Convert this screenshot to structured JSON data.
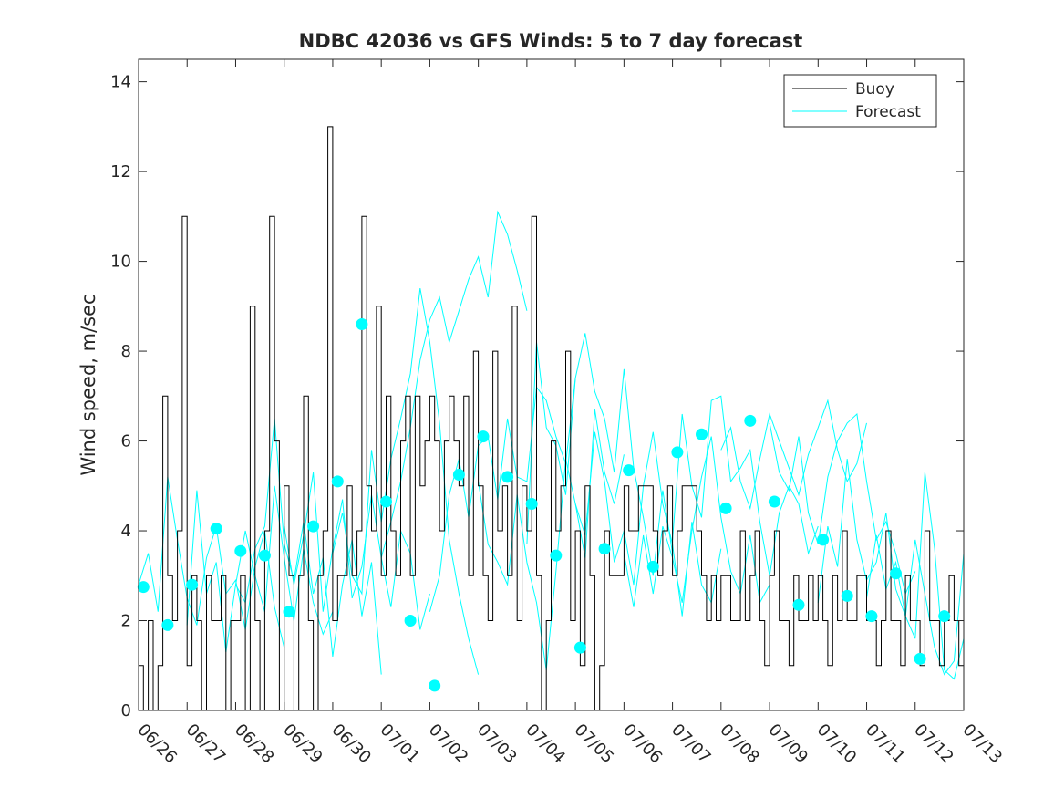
{
  "chart_data": {
    "type": "line",
    "title": "NDBC 42036 vs GFS Winds: 5 to 7 day forecast",
    "xlabel": "",
    "ylabel": "Wind speed, m/sec",
    "xlim": [
      "06/26",
      "07/13"
    ],
    "ylim": [
      0,
      14.5
    ],
    "x_ticks": [
      "06/26",
      "06/27",
      "06/28",
      "06/29",
      "06/30",
      "07/01",
      "07/02",
      "07/03",
      "07/04",
      "07/05",
      "07/06",
      "07/07",
      "07/08",
      "07/09",
      "07/10",
      "07/11",
      "07/12",
      "07/13"
    ],
    "y_ticks": [
      0,
      2,
      4,
      6,
      8,
      10,
      12,
      14
    ],
    "legend": {
      "position": "top-right",
      "entries": [
        "Buoy",
        "Forecast"
      ]
    },
    "colors": {
      "buoy": "#000000",
      "forecast": "#00ffff",
      "axis": "#262626"
    },
    "grid": false,
    "buoy_day_start": "06/26",
    "series": [
      {
        "name": "Buoy",
        "note": "hourly observations; t = days after 06/26 00:00",
        "t": [
          0.0,
          0.1,
          0.2,
          0.3,
          0.4,
          0.5,
          0.6,
          0.7,
          0.8,
          0.9,
          1.0,
          1.1,
          1.2,
          1.3,
          1.4,
          1.5,
          1.6,
          1.7,
          1.8,
          1.9,
          2.0,
          2.1,
          2.2,
          2.3,
          2.4,
          2.5,
          2.6,
          2.7,
          2.8,
          2.9,
          3.0,
          3.1,
          3.2,
          3.3,
          3.4,
          3.5,
          3.6,
          3.7,
          3.8,
          3.9,
          4.0,
          4.1,
          4.2,
          4.3,
          4.4,
          4.5,
          4.6,
          4.7,
          4.8,
          4.9,
          5.0,
          5.1,
          5.2,
          5.3,
          5.4,
          5.5,
          5.6,
          5.7,
          5.8,
          5.9,
          6.0,
          6.1,
          6.2,
          6.3,
          6.4,
          6.5,
          6.6,
          6.7,
          6.8,
          6.9,
          7.0,
          7.1,
          7.2,
          7.3,
          7.4,
          7.5,
          7.6,
          7.7,
          7.8,
          7.9,
          8.0,
          8.1,
          8.2,
          8.3,
          8.4,
          8.5,
          8.6,
          8.7,
          8.8,
          8.9,
          9.0,
          9.1,
          9.2,
          9.3,
          9.4,
          9.5,
          9.6,
          9.7,
          9.8,
          9.9,
          10.0,
          10.1,
          10.2,
          10.3,
          10.4,
          10.5,
          10.6,
          10.7,
          10.8,
          10.9,
          11.0,
          11.1,
          11.2,
          11.3,
          11.4,
          11.5,
          11.6,
          11.7,
          11.8,
          11.9,
          12.0,
          12.1,
          12.2,
          12.3,
          12.4,
          12.5,
          12.6,
          12.7,
          12.8,
          12.9,
          13.0,
          13.1,
          13.2,
          13.3,
          13.4,
          13.5,
          13.6,
          13.7,
          13.8,
          13.9,
          14.0,
          14.1,
          14.2,
          14.3,
          14.4,
          14.5,
          14.6,
          14.7,
          14.8,
          14.9,
          15.0,
          15.1,
          15.2,
          15.3,
          15.4,
          15.5,
          15.6,
          15.7,
          15.8,
          15.9,
          16.0,
          16.1,
          16.2,
          16.3,
          16.4,
          16.5,
          16.6,
          16.7,
          16.8,
          16.9,
          17.0
        ],
        "values": [
          1,
          0,
          2,
          0,
          1,
          7,
          3,
          2,
          4,
          11,
          1,
          3,
          2,
          0,
          3,
          2,
          2,
          3,
          0,
          2,
          2,
          3,
          0,
          9,
          2,
          0,
          4,
          11,
          6,
          0,
          5,
          3,
          0,
          3,
          7,
          2,
          0,
          3,
          4,
          13,
          2,
          3,
          3,
          5,
          3,
          4,
          11,
          5,
          4,
          9,
          3,
          7,
          4,
          3,
          6,
          7,
          3,
          7,
          5,
          6,
          7,
          6,
          4,
          6,
          7,
          6,
          5,
          7,
          3,
          8,
          5,
          3,
          2,
          8,
          4,
          5,
          3,
          9,
          2,
          5,
          4,
          11,
          3,
          0,
          2,
          6,
          4,
          5,
          8,
          2,
          4,
          1,
          5,
          3,
          0,
          1,
          4,
          3,
          3,
          3,
          5,
          4,
          4,
          5,
          5,
          5,
          4,
          3,
          4,
          5,
          3,
          4,
          5,
          5,
          5,
          4,
          3,
          2,
          3,
          2,
          3,
          3,
          2,
          2,
          4,
          2,
          3,
          4,
          2,
          1,
          3,
          4,
          2,
          2,
          1,
          3,
          2,
          2,
          3,
          2,
          3,
          2,
          1,
          3,
          2,
          4,
          2,
          2,
          3,
          3,
          2,
          2,
          1,
          2,
          4,
          2,
          2,
          1,
          3,
          2,
          2,
          1,
          4,
          2,
          2,
          1,
          2,
          3,
          2,
          1,
          2
        ]
      },
      {
        "name": "Forecast",
        "segments": [
          {
            "t": [
              0.0,
              0.2,
              0.4,
              0.6,
              0.8,
              1.0,
              1.2,
              1.4,
              1.6,
              1.8,
              2.0,
              2.2,
              2.4,
              2.6,
              2.8,
              3.0
            ],
            "values": [
              2.8,
              3.5,
              2.2,
              5.2,
              3.8,
              2.5,
              1.9,
              3.4,
              4.1,
              2.6,
              2.9,
              1.8,
              3.2,
              4.0,
              2.3,
              1.4
            ]
          },
          {
            "t": [
              1.0,
              1.2,
              1.4,
              1.6,
              1.8,
              2.0,
              2.2,
              2.4,
              2.6,
              2.8,
              3.0,
              3.2,
              3.4,
              3.6,
              3.8,
              4.0
            ],
            "values": [
              1.9,
              4.9,
              2.6,
              3.3,
              1.3,
              2.8,
              4.0,
              3.0,
              2.2,
              5.0,
              3.4,
              2.0,
              3.6,
              2.4,
              1.7,
              2.2
            ]
          },
          {
            "t": [
              2.0,
              2.2,
              2.4,
              2.6,
              2.8,
              3.0,
              3.2,
              3.4,
              3.6,
              3.8,
              4.0,
              4.2,
              4.4,
              4.6,
              4.8,
              5.0
            ],
            "values": [
              2.8,
              2.4,
              3.6,
              4.1,
              6.5,
              3.7,
              2.9,
              4.2,
              2.6,
              3.4,
              1.2,
              2.8,
              3.8,
              2.1,
              3.3,
              0.8
            ]
          },
          {
            "t": [
              3.0,
              3.2,
              3.4,
              3.6,
              3.8,
              4.0,
              4.2,
              4.4,
              4.6,
              4.8,
              5.0,
              5.2,
              5.4,
              5.6,
              5.8,
              6.0
            ],
            "values": [
              4.1,
              2.8,
              3.9,
              5.3,
              2.2,
              3.6,
              4.7,
              2.5,
              3.2,
              4.8,
              3.4,
              2.3,
              4.0,
              3.5,
              1.8,
              2.6
            ]
          },
          {
            "t": [
              4.0,
              4.2,
              4.4,
              4.6,
              4.8,
              5.0,
              5.2,
              5.4,
              5.6,
              5.8,
              6.0,
              6.2,
              6.4,
              6.6,
              6.8,
              7.0
            ],
            "values": [
              3.5,
              4.4,
              3.0,
              2.6,
              5.8,
              4.2,
              5.6,
              6.5,
              7.5,
              9.4,
              8.2,
              6.4,
              3.8,
              2.6,
              1.6,
              0.8
            ]
          },
          {
            "t": [
              5.0,
              5.2,
              5.4,
              5.6,
              5.8,
              6.0,
              6.2,
              6.4,
              6.6,
              6.8,
              7.0,
              7.2,
              7.4,
              7.6,
              7.8,
              8.0
            ],
            "values": [
              3.4,
              4.2,
              5.1,
              6.3,
              7.8,
              8.7,
              9.2,
              8.2,
              8.9,
              9.6,
              10.1,
              9.2,
              11.1,
              10.6,
              9.8,
              8.9
            ]
          },
          {
            "t": [
              6.0,
              6.2,
              6.4,
              6.6,
              6.8,
              7.0,
              7.2,
              7.4,
              7.6,
              7.8,
              8.0,
              8.2,
              8.4,
              8.6,
              8.8,
              9.0
            ],
            "values": [
              2.2,
              3.0,
              4.8,
              5.6,
              4.3,
              5.9,
              6.1,
              4.7,
              6.5,
              5.2,
              5.1,
              7.2,
              6.9,
              6.1,
              5.5,
              7.4
            ]
          },
          {
            "t": [
              7.0,
              7.2,
              7.4,
              7.6,
              7.8,
              8.0,
              8.2,
              8.4,
              8.6,
              8.8,
              9.0,
              9.2,
              9.4,
              9.6,
              9.8,
              10.0
            ],
            "values": [
              5.1,
              3.7,
              3.3,
              2.8,
              4.8,
              3.3,
              2.4,
              0.9,
              3.1,
              5.6,
              4.6,
              3.4,
              6.7,
              5.3,
              4.6,
              5.7
            ]
          },
          {
            "t": [
              8.0,
              8.2,
              8.4,
              8.6,
              8.8,
              9.0,
              9.2,
              9.4,
              9.6,
              9.8,
              10.0,
              10.2,
              10.4,
              10.6,
              10.8,
              11.0
            ],
            "values": [
              3.7,
              8.2,
              6.3,
              5.9,
              4.8,
              7.4,
              8.4,
              7.1,
              6.5,
              5.3,
              7.6,
              5.4,
              4.3,
              3.0,
              4.9,
              3.5
            ]
          },
          {
            "t": [
              9.0,
              9.2,
              9.4,
              9.6,
              9.8,
              10.0,
              10.2,
              10.4,
              10.6,
              10.8,
              11.0,
              11.2,
              11.4,
              11.6,
              11.8,
              12.0
            ],
            "values": [
              4.6,
              3.9,
              6.2,
              5.1,
              3.3,
              4.0,
              2.8,
              5.0,
              6.2,
              4.6,
              3.7,
              2.1,
              4.2,
              2.8,
              2.4,
              3.6
            ]
          },
          {
            "t": [
              10.0,
              10.2,
              10.4,
              10.6,
              10.8,
              11.0,
              11.2,
              11.4,
              11.6,
              11.8,
              12.0,
              12.2,
              12.4,
              12.6,
              12.8,
              13.0
            ],
            "values": [
              3.5,
              2.3,
              3.9,
              2.6,
              4.1,
              3.4,
              2.4,
              4.0,
              5.2,
              6.1,
              4.3,
              3.1,
              2.6,
              3.9,
              2.4,
              2.8
            ]
          },
          {
            "t": [
              11.0,
              11.2,
              11.4,
              11.6,
              11.8,
              12.0,
              12.2,
              12.4,
              12.6,
              12.8,
              13.0,
              13.2,
              13.4,
              13.6,
              13.8,
              14.0
            ],
            "values": [
              3.8,
              6.6,
              5.0,
              4.3,
              6.9,
              7.0,
              5.1,
              5.4,
              5.8,
              4.2,
              3.0,
              4.4,
              5.0,
              4.6,
              3.5,
              4.1
            ]
          },
          {
            "t": [
              12.0,
              12.2,
              12.4,
              12.6,
              12.8,
              13.0,
              13.2,
              13.4,
              13.6,
              13.8,
              14.0,
              14.2,
              14.4,
              14.6,
              14.8,
              15.0
            ],
            "values": [
              5.8,
              6.3,
              5.1,
              4.5,
              5.6,
              6.6,
              6.0,
              5.4,
              4.8,
              5.7,
              6.3,
              6.9,
              5.8,
              5.1,
              5.5,
              6.4
            ]
          },
          {
            "t": [
              13.0,
              13.2,
              13.4,
              13.6,
              13.8,
              14.0,
              14.2,
              14.4,
              14.6,
              14.8,
              15.0,
              15.2,
              15.4,
              15.6,
              15.8,
              16.0
            ],
            "values": [
              6.4,
              5.3,
              4.9,
              6.1,
              4.4,
              3.7,
              5.2,
              6.0,
              6.4,
              6.6,
              5.1,
              3.8,
              4.2,
              3.5,
              2.6,
              3.1
            ]
          },
          {
            "t": [
              14.0,
              14.2,
              14.4,
              14.6,
              14.8,
              15.0,
              15.2,
              15.4,
              15.6,
              15.8,
              16.0,
              16.2,
              16.4,
              16.6,
              16.8,
              17.0
            ],
            "values": [
              2.4,
              4.1,
              3.2,
              5.6,
              3.8,
              2.9,
              3.3,
              4.4,
              2.7,
              2.1,
              1.6,
              5.3,
              3.6,
              0.9,
              0.7,
              1.6
            ]
          },
          {
            "t": [
              15.0,
              15.2,
              15.4,
              15.6,
              15.8,
              16.0,
              16.2,
              16.4,
              16.6,
              16.8,
              17.0
            ],
            "values": [
              2.5,
              3.9,
              2.7,
              3.3,
              2.1,
              3.8,
              2.6,
              1.4,
              0.8,
              1.1,
              3.5
            ]
          }
        ]
      }
    ],
    "markers": {
      "series": "Forecast",
      "t": [
        0.1,
        0.6,
        1.1,
        1.6,
        2.1,
        2.6,
        3.1,
        3.6,
        4.1,
        4.6,
        5.1,
        5.6,
        6.1,
        6.6,
        7.1,
        7.6,
        8.1,
        8.6,
        9.1,
        9.6,
        10.1,
        10.6,
        11.1,
        11.6,
        12.1,
        12.6,
        13.1,
        13.6,
        14.1,
        14.6,
        15.1,
        15.6,
        16.1,
        16.6
      ],
      "values": [
        2.75,
        1.9,
        2.8,
        4.05,
        3.55,
        3.45,
        2.2,
        4.1,
        5.1,
        8.6,
        4.65,
        2.0,
        0.55,
        5.25,
        6.1,
        5.2,
        4.6,
        3.45,
        1.4,
        3.6,
        5.35,
        3.2,
        5.75,
        6.15,
        4.5,
        6.45,
        4.65,
        2.35,
        3.8,
        2.55,
        2.1,
        3.05,
        1.15,
        2.1
      ]
    }
  }
}
